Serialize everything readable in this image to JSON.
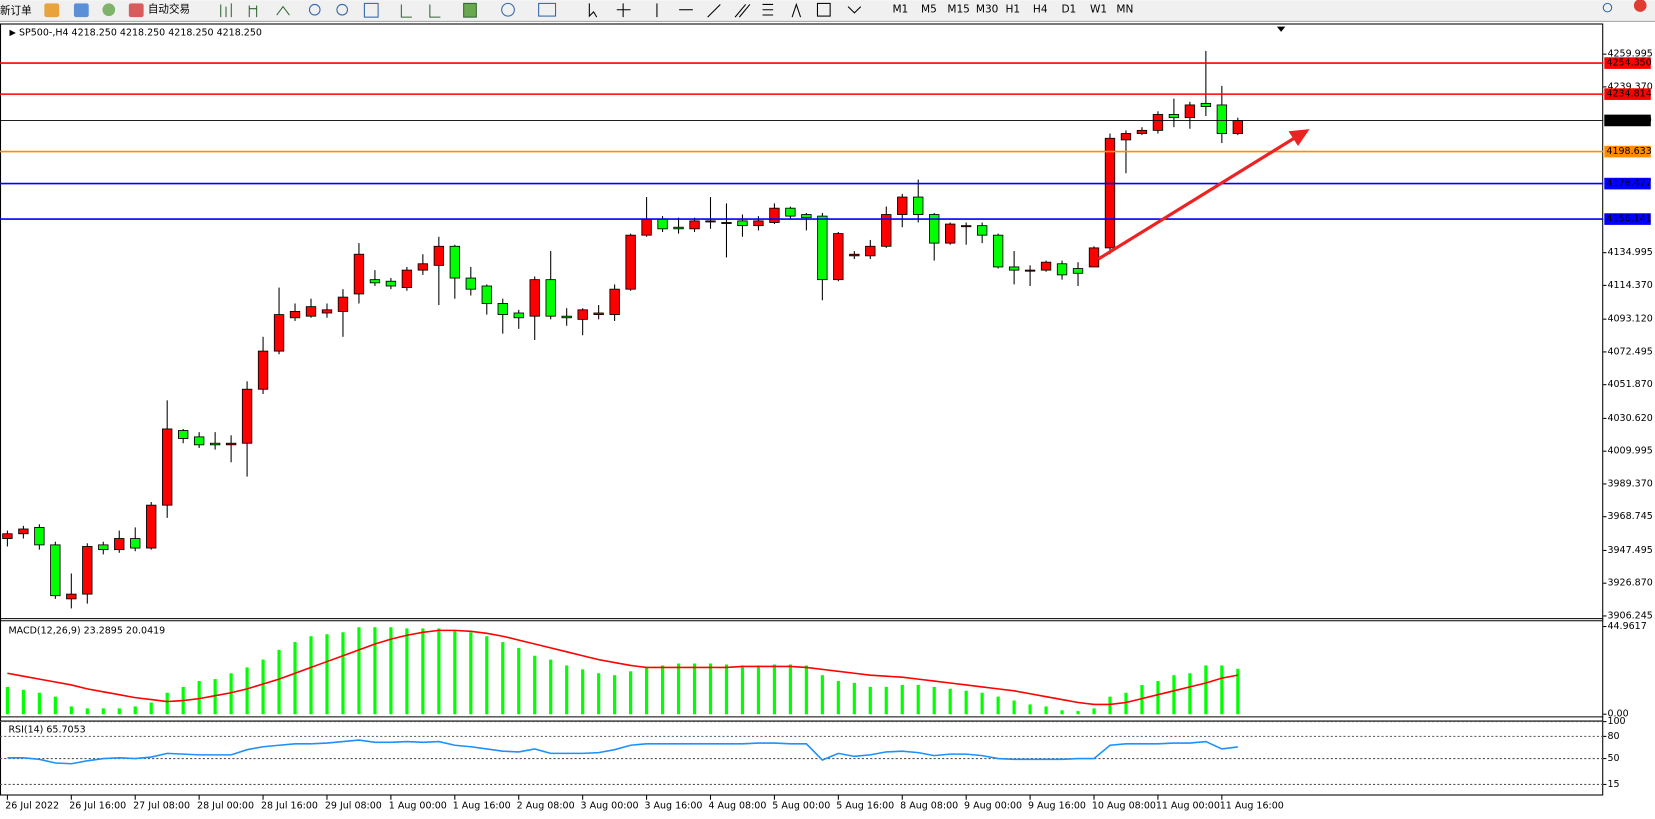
{
  "toolbar": {
    "new_order": "新订单",
    "auto_trading": "自动交易",
    "timeframes": [
      "M1",
      "M5",
      "M15",
      "M30",
      "H1",
      "H4",
      "D1",
      "W1",
      "MN"
    ]
  },
  "chart_data": [
    {
      "type": "candlestick",
      "title": "SP500-,H4  4218.250 4218.250 4218.250 4218.250",
      "categories": [
        "26 Jul 2022",
        null,
        null,
        null,
        "26 Jul 16:00",
        null,
        null,
        null,
        "27 Jul 08:00",
        null,
        null,
        null,
        "28 Jul 00:00",
        null,
        null,
        null,
        "28 Jul 16:00",
        null,
        null,
        null,
        "29 Jul 08:00",
        null,
        null,
        null,
        "1 Aug 00:00",
        null,
        null,
        null,
        "1 Aug 16:00",
        null,
        null,
        null,
        "2 Aug 08:00",
        null,
        null,
        null,
        "3 Aug 00:00",
        null,
        null,
        null,
        "3 Aug 16:00",
        null,
        null,
        null,
        "4 Aug 08:00",
        null,
        null,
        null,
        "5 Aug 00:00",
        null,
        null,
        null,
        "5 Aug 16:00",
        null,
        null,
        null,
        "8 Aug 08:00",
        null,
        null,
        null,
        "9 Aug 00:00",
        null,
        null,
        null,
        "9 Aug 16:00",
        null,
        null,
        null,
        "10 Aug 08:00",
        null,
        null,
        null,
        "11 Aug 00:00",
        null,
        null,
        null,
        "11 Aug 16:00",
        null
      ],
      "open": [
        3955,
        3958,
        3962,
        3951,
        3917,
        3920,
        3951,
        3948,
        3955,
        3949,
        3976,
        4023,
        4019,
        4015,
        4014,
        4015,
        4049,
        4073,
        4094,
        4095,
        4097,
        4098,
        4109,
        4118,
        4117,
        4113,
        4124,
        4127,
        4139,
        4119,
        4114,
        4103,
        4097,
        4095,
        4118,
        4095,
        4093,
        4096,
        4096,
        4112,
        4146,
        4156,
        4151,
        4150,
        4155,
        4154,
        4155,
        4152,
        4154,
        4163,
        4159,
        4158,
        4118,
        4133,
        4133,
        4139,
        4159,
        4170,
        4159,
        4141,
        4152,
        4152,
        4146,
        4126,
        4124,
        4124,
        4128,
        4125,
        4126,
        4138,
        4206,
        4210,
        4212,
        4222,
        4220,
        4229,
        4228,
        4210
      ],
      "high": [
        3960,
        3963,
        3964,
        3953,
        3933,
        3952,
        3953,
        3960,
        3962,
        3978,
        4042,
        4024,
        4022,
        4022,
        4020,
        4054,
        4082,
        4113,
        4103,
        4106,
        4103,
        4112,
        4141,
        4124,
        4119,
        4126,
        4134,
        4145,
        4140,
        4126,
        4115,
        4106,
        4099,
        4120,
        4136,
        4100,
        4100,
        4102,
        4115,
        4147,
        4170,
        4158,
        4157,
        4157,
        4170,
        4166,
        4159,
        4158,
        4166,
        4164,
        4160,
        4160,
        4148,
        4136,
        4143,
        4164,
        4172,
        4181,
        4160,
        4154,
        4154,
        4154,
        4147,
        4136,
        4127,
        4130,
        4130,
        4129,
        4139,
        4210,
        4212,
        4214,
        4224,
        4232,
        4230,
        4262,
        4240,
        4220
      ],
      "low": [
        3950,
        3955,
        3948,
        3917,
        3911,
        3914,
        3945,
        3946,
        3947,
        3948,
        3968,
        4015,
        4012,
        4011,
        4003,
        3994,
        4046,
        4071,
        4092,
        4094,
        4094,
        4082,
        4103,
        4114,
        4112,
        4111,
        4121,
        4102,
        4106,
        4108,
        4096,
        4084,
        4087,
        4080,
        4093,
        4089,
        4083,
        4093,
        4092,
        4111,
        4145,
        4148,
        4147,
        4148,
        4150,
        4132,
        4145,
        4149,
        4153,
        4156,
        4149,
        4105,
        4117,
        4131,
        4131,
        4138,
        4151,
        4154,
        4130,
        4140,
        4140,
        4141,
        4125,
        4115,
        4114,
        4123,
        4118,
        4114,
        4126,
        4134,
        4185,
        4209,
        4210,
        4214,
        4213,
        4221,
        4204,
        4209
      ],
      "close": [
        3958,
        3961,
        3951,
        3919,
        3920,
        3950,
        3948,
        3955,
        3949,
        3976,
        4024,
        4018,
        4014,
        4014,
        4015,
        4049,
        4073,
        4096,
        4098,
        4101,
        4099,
        4107,
        4134,
        4116,
        4114,
        4124,
        4128,
        4139,
        4119,
        4112,
        4103,
        4096,
        4094,
        4118,
        4095,
        4094,
        4099,
        4097,
        4112,
        4146,
        4156,
        4150,
        4150,
        4155,
        4155,
        4154,
        4152,
        4155,
        4163,
        4158,
        4157,
        4118,
        4147,
        4134,
        4139,
        4159,
        4170,
        4159,
        4141,
        4153,
        4152,
        4146,
        4126,
        4124,
        4124,
        4129,
        4121,
        4122,
        4138,
        4207,
        4210,
        4212,
        4222,
        4220,
        4228,
        4227,
        4210,
        4218.25
      ],
      "up_color": "#ff0000",
      "down_color": "#00ff00",
      "ylim": [
        3904.9,
        4279.3
      ],
      "yticks": [
        4259.995,
        {
          "value": 4239.37,
          "label": "4239.370"
        },
        4134.995,
        {
          "value": 4114.37,
          "label": "4114.370"
        },
        {
          "value": 4093.12,
          "label": "4093.120"
        },
        4072.495,
        {
          "value": 4051.87,
          "label": "4051.870"
        },
        {
          "value": 4030.62,
          "label": "4030.620"
        },
        4009.995,
        {
          "value": 3989.37,
          "label": "3989.370"
        },
        3968.745,
        3947.495,
        {
          "value": 3926.87,
          "label": "3926.870"
        },
        3906.245
      ],
      "levels": [
        {
          "value": 4254.35,
          "label": "4254.350",
          "color": "#ff0000"
        },
        {
          "value": 4234.814,
          "label": "4234.814",
          "color": "#ff0000"
        },
        {
          "value": 4218.25,
          "label": "4218.250",
          "color": "#000000"
        },
        {
          "value": 4198.633,
          "label": "4198.633",
          "color": "#ff8c00"
        },
        {
          "value": 4178.477,
          "label": "4178.477",
          "color": "#0000ff"
        },
        {
          "value": 4156.141,
          "label": "4156.141",
          "color": "#0000ff"
        }
      ]
    },
    {
      "type": "combo",
      "title": "MACD(12,26,9) 23.2895 20.0419",
      "ylim": [
        -1.08,
        47.67
      ],
      "yticks": [
        44.9617,
        {
          "value": 0,
          "label": "0.00"
        }
      ],
      "series": [
        {
          "type": "bar",
          "color": "#00ff00",
          "values": [
            14,
            12.5,
            11,
            9,
            4,
            3,
            3,
            3,
            4,
            6,
            11,
            14,
            17,
            18,
            21,
            24,
            28,
            33,
            37,
            40,
            41,
            42,
            44.6,
            44.6,
            44.6,
            44,
            44,
            44,
            43,
            42,
            40,
            37,
            34,
            30,
            28,
            25,
            23,
            21,
            20,
            22,
            24,
            25,
            26,
            26,
            26,
            25.5,
            25,
            25,
            25.5,
            25.5,
            25,
            20,
            17,
            16,
            14,
            14,
            15,
            15,
            14,
            13,
            12,
            11,
            9,
            7,
            5,
            4,
            2,
            1.6,
            3,
            9,
            11,
            15,
            17,
            20,
            21,
            25,
            25,
            23.2895
          ]
        },
        {
          "type": "line",
          "color": "#ff0000",
          "values": [
            21,
            19.5,
            18,
            16.5,
            15,
            13,
            11.5,
            10,
            8.5,
            7.5,
            6.5,
            7,
            8,
            9.5,
            11,
            13,
            15.5,
            18,
            21,
            24,
            27,
            30,
            33,
            36,
            38.5,
            40.5,
            42,
            43,
            43,
            42.5,
            41.5,
            40,
            38,
            36,
            34,
            32,
            30,
            28,
            26.5,
            25,
            24,
            24,
            24,
            24,
            24,
            24,
            24.5,
            24.5,
            24.5,
            24.5,
            24,
            23,
            22,
            21,
            20,
            19.5,
            19,
            18,
            17,
            16,
            15,
            14,
            13,
            12,
            10.5,
            9,
            7.5,
            6,
            5,
            5,
            6,
            8,
            10,
            12,
            14,
            16,
            18.5,
            20.0419
          ]
        }
      ]
    },
    {
      "type": "line",
      "title": "RSI(14) 65.7053",
      "ylim": [
        0,
        100
      ],
      "yticks": [
        100,
        80,
        50,
        15
      ],
      "grid": true,
      "series": [
        {
          "color": "#1e90ff",
          "values": [
            51,
            51,
            49,
            44,
            43,
            47,
            50,
            51,
            50,
            52,
            57,
            56,
            55,
            55,
            55,
            62,
            66,
            68,
            70,
            70,
            71,
            73,
            75,
            72,
            72,
            73,
            72,
            73,
            68,
            66,
            63,
            60,
            59,
            63,
            57,
            57,
            57,
            58,
            62,
            68,
            70,
            70,
            70,
            70,
            70,
            70,
            70,
            71,
            71,
            70,
            70,
            48,
            57,
            53,
            55,
            59,
            60,
            58,
            54,
            56,
            56,
            54,
            50,
            49,
            49,
            49,
            49,
            50,
            50,
            68,
            70,
            70,
            70,
            71,
            71,
            73,
            63,
            65.7053
          ]
        }
      ]
    }
  ]
}
